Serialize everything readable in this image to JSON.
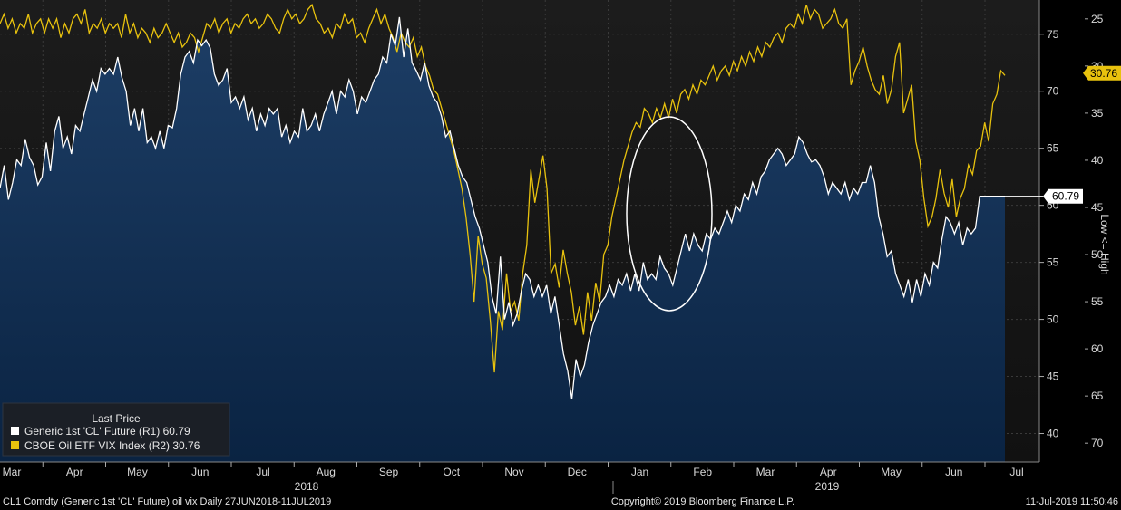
{
  "chart_data": {
    "type": "line",
    "x_labels": [
      "Mar",
      "Apr",
      "May",
      "Jun",
      "Jul",
      "Aug",
      "Sep",
      "Oct",
      "Nov",
      "Dec",
      "Jan",
      "Feb",
      "Mar",
      "Apr",
      "May",
      "Jun",
      "Jul"
    ],
    "year_labels": [
      "2018",
      "2019"
    ],
    "date_range": "27JUN2018-11JUL2019",
    "right_axis_1": {
      "name": "R1",
      "ticks": [
        40,
        45,
        50,
        55,
        60,
        65,
        70,
        75
      ],
      "ylim": [
        37.5,
        78
      ]
    },
    "right_axis_2": {
      "name": "R2",
      "ticks": [
        25,
        30,
        35,
        40,
        45,
        50,
        55,
        60,
        65,
        70
      ],
      "ylim": [
        23,
        72
      ],
      "inverted": true,
      "label": "Low <= High"
    },
    "legend": {
      "title": "Last Price",
      "entries": [
        {
          "label": "Generic 1st 'CL' Future  (R1) 60.79",
          "color": "#ffffff"
        },
        {
          "label": "CBOE Oil ETF VIX Index  (R2) 30.76",
          "color": "#e8c20e"
        }
      ]
    },
    "series": [
      {
        "name": "Generic 1st 'CL' Future",
        "axis": "R1",
        "last": "60.79",
        "color": "#ffffff",
        "fill": "#0d2a4d",
        "values": [
          61.5,
          63.5,
          60.5,
          62.0,
          64.0,
          63.5,
          65.8,
          64.2,
          63.5,
          61.8,
          62.5,
          65.5,
          63.0,
          66.5,
          67.8,
          65.0,
          66.0,
          64.5,
          67.0,
          66.5,
          68.0,
          69.5,
          71.0,
          70.0,
          72.0,
          71.5,
          72.0,
          71.5,
          73.0,
          71.2,
          70.0,
          67.0,
          68.5,
          66.5,
          68.5,
          65.5,
          66.0,
          65.0,
          66.5,
          65.0,
          67.0,
          66.8,
          68.5,
          71.5,
          73.0,
          73.5,
          72.5,
          74.5,
          74.0,
          74.5,
          73.8,
          71.5,
          70.5,
          71.0,
          72.0,
          69.0,
          69.5,
          68.5,
          69.5,
          67.5,
          68.5,
          66.5,
          68.0,
          67.0,
          68.5,
          68.0,
          68.5,
          66.0,
          67.0,
          65.5,
          66.5,
          66.0,
          68.5,
          66.5,
          67.0,
          68.0,
          66.5,
          68.0,
          69.0,
          70.0,
          68.0,
          70.0,
          69.5,
          71.0,
          70.0,
          68.0,
          69.5,
          69.0,
          70.0,
          71.0,
          71.5,
          73.0,
          72.5,
          75.0,
          74.0,
          76.5,
          73.0,
          75.5,
          72.5,
          71.8,
          71.0,
          72.5,
          70.5,
          69.5,
          69.0,
          67.8,
          66.0,
          66.5,
          65.0,
          63.5,
          62.5,
          62.0,
          60.5,
          59.0,
          58.0,
          56.5,
          55.0,
          52.0,
          50.5,
          55.5,
          50.0,
          51.5,
          49.5,
          50.5,
          52.5,
          54.0,
          53.5,
          52.0,
          53.0,
          52.0,
          53.0,
          50.5,
          52.0,
          49.5,
          47.0,
          45.5,
          43.0,
          46.5,
          45.0,
          46.0,
          48.0,
          49.5,
          50.5,
          51.5,
          52.0,
          53.0,
          52.0,
          53.5,
          53.0,
          54.0,
          52.5,
          54.0,
          52.5,
          55.0,
          53.5,
          54.0,
          53.5,
          55.5,
          54.5,
          54.0,
          53.0,
          54.5,
          56.0,
          57.5,
          56.0,
          57.5,
          56.5,
          56.0,
          57.5,
          57.0,
          58.0,
          57.5,
          58.5,
          59.5,
          58.5,
          60.0,
          59.5,
          61.0,
          60.5,
          62.0,
          61.0,
          62.5,
          63.0,
          64.0,
          64.5,
          65.0,
          64.5,
          63.5,
          64.0,
          64.5,
          66.0,
          65.5,
          64.5,
          63.8,
          64.0,
          63.5,
          62.5,
          61.0,
          62.0,
          61.5,
          61.0,
          62.0,
          60.5,
          61.5,
          61.0,
          62.0,
          62.0,
          63.5,
          62.0,
          59.0,
          57.5,
          55.5,
          56.0,
          54.0,
          53.0,
          52.0,
          53.5,
          51.5,
          53.5,
          52.0,
          54.0,
          53.0,
          55.0,
          54.5,
          57.0,
          59.0,
          58.5,
          57.5,
          58.5,
          56.5,
          58.0,
          57.5,
          58.0,
          60.79,
          60.79,
          60.79,
          60.79,
          60.79,
          60.79,
          60.79
        ]
      },
      {
        "name": "CBOE Oil ETF VIX Index",
        "axis": "R2",
        "last": "30.76",
        "color": "#e8c20e",
        "values": [
          25.5,
          24.5,
          26.0,
          25.0,
          26.5,
          25.5,
          26.0,
          24.5,
          26.5,
          25.5,
          25.0,
          26.5,
          25.0,
          26.0,
          25.0,
          27.0,
          25.5,
          26.5,
          25.0,
          24.5,
          25.5,
          24.0,
          26.5,
          25.5,
          26.0,
          25.0,
          26.5,
          25.5,
          26.0,
          25.5,
          27.0,
          24.5,
          26.5,
          25.5,
          27.0,
          26.0,
          26.5,
          27.5,
          26.0,
          27.0,
          26.5,
          25.5,
          26.5,
          27.5,
          26.5,
          28.0,
          27.5,
          26.5,
          27.0,
          28.5,
          27.0,
          25.5,
          26.0,
          25.0,
          26.5,
          25.5,
          25.0,
          26.5,
          25.5,
          26.0,
          25.0,
          24.5,
          25.5,
          25.0,
          26.0,
          25.5,
          24.5,
          25.0,
          26.0,
          26.5,
          25.0,
          24.0,
          25.0,
          24.5,
          25.5,
          25.0,
          24.0,
          23.5,
          25.0,
          25.5,
          26.5,
          26.0,
          27.0,
          25.5,
          26.0,
          24.5,
          25.5,
          25.0,
          27.0,
          26.5,
          27.5,
          26.0,
          25.0,
          24.0,
          25.5,
          24.5,
          26.0,
          27.0,
          28.5,
          26.5,
          27.5,
          28.0,
          27.0,
          29.0,
          28.0,
          30.0,
          31.0,
          32.5,
          33.0,
          34.5,
          36.0,
          37.5,
          39.0,
          41.0,
          43.0,
          46.0,
          50.0,
          55.0,
          48.0,
          51.0,
          52.5,
          57.0,
          62.5,
          56.0,
          58.0,
          52.0,
          56.0,
          55.0,
          57.0,
          52.0,
          49.0,
          41.0,
          44.5,
          42.0,
          39.5,
          43.0,
          52.0,
          51.0,
          53.5,
          49.5,
          52.0,
          54.0,
          57.5,
          55.5,
          58.5,
          54.0,
          57.0,
          53.0,
          55.0,
          50.0,
          49.0,
          46.0,
          44.0,
          42.0,
          40.0,
          38.5,
          37.0,
          36.0,
          36.5,
          34.5,
          35.0,
          36.0,
          34.5,
          35.5,
          34.0,
          35.5,
          33.5,
          35.0,
          33.0,
          32.5,
          33.5,
          32.0,
          33.0,
          31.5,
          32.0,
          31.0,
          30.0,
          31.5,
          30.5,
          30.0,
          31.0,
          29.5,
          30.5,
          29.0,
          30.0,
          28.5,
          29.5,
          28.0,
          29.0,
          27.5,
          28.0,
          27.0,
          26.5,
          27.5,
          26.0,
          25.5,
          26.0,
          24.5,
          25.5,
          23.5,
          25.0,
          24.0,
          24.5,
          26.0,
          25.5,
          25.0,
          24.0,
          25.5,
          26.0,
          25.0,
          32.0,
          30.5,
          29.5,
          28.0,
          30.0,
          31.5,
          32.5,
          33.0,
          31.0,
          34.0,
          32.5,
          29.0,
          27.5,
          35.0,
          33.5,
          32.0,
          38.0,
          40.0,
          44.0,
          47.0,
          46.0,
          44.0,
          41.0,
          43.5,
          45.0,
          42.0,
          46.0,
          44.0,
          43.0,
          40.5,
          41.5,
          39.0,
          38.5,
          36.0,
          38.0,
          34.0,
          33.0,
          30.5,
          31.0
        ]
      }
    ],
    "annotation": "circle highlighting Jan 2019 divergence"
  },
  "footer": {
    "left": "CL1 Comdty (Generic 1st 'CL' Future) oil vix  Daily 27JUN2018-11JUL2019",
    "center": "Copyright© 2019 Bloomberg Finance L.P.",
    "right": "11-Jul-2019 11:50:46"
  },
  "colors": {
    "background": "#000000",
    "fill": "#0d2a4d",
    "cl": "#ffffff",
    "vix": "#e8c20e",
    "grid": "#444444"
  }
}
